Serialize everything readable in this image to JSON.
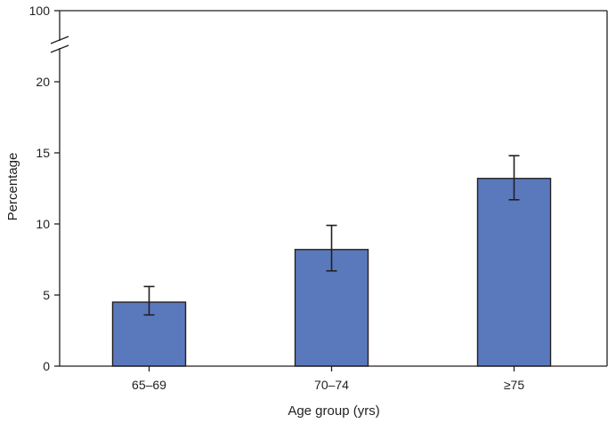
{
  "chart_data": {
    "type": "bar",
    "xlabel": "Age group (yrs)",
    "ylabel": "Percentage",
    "categories": [
      "65–69",
      "70–74",
      "≥75"
    ],
    "values": [
      4.5,
      8.2,
      13.2
    ],
    "error_bars": {
      "lower": [
        3.6,
        6.7,
        11.7
      ],
      "upper": [
        5.6,
        9.9,
        14.8
      ]
    },
    "ylim": [
      0,
      22
    ],
    "y_ticks": [
      0,
      5,
      10,
      15,
      20
    ],
    "y_top_tick": 100,
    "axis_break": true,
    "y_tick_labels": [
      "0",
      "5",
      "10",
      "15",
      "20",
      "100"
    ],
    "bar_color": "#5a79bd",
    "grid": false,
    "legend": "none"
  }
}
